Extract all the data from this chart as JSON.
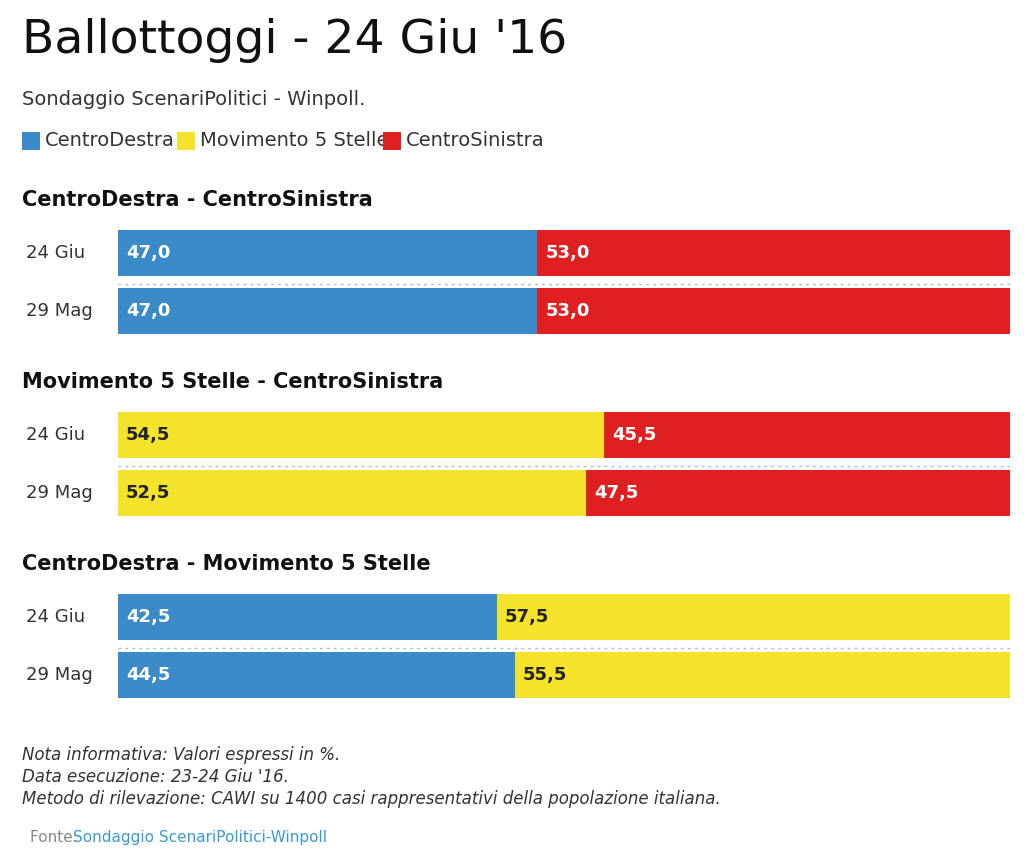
{
  "title": "Ballottoggi - 24 Giu '16",
  "subtitle": "Sondaggio ScenariPolitici - Winpoll.",
  "background_color": "#ffffff",
  "colors": {
    "blue": "#3a8bc8",
    "yellow": "#f5e22a",
    "red": "#e02020"
  },
  "legend_labels": [
    "CentroDestra",
    "Movimento 5 Stelle",
    "CentroSinistra"
  ],
  "sections": [
    {
      "title": "CentroDestra - CentroSinistra",
      "rows": [
        {
          "label": "24 Giu",
          "bar1_color": "blue",
          "bar1_val": 47.0,
          "bar2_color": "red",
          "bar2_val": 53.0
        },
        {
          "label": "29 Mag",
          "bar1_color": "blue",
          "bar1_val": 47.0,
          "bar2_color": "red",
          "bar2_val": 53.0
        }
      ]
    },
    {
      "title": "Movimento 5 Stelle - CentroSinistra",
      "rows": [
        {
          "label": "24 Giu",
          "bar1_color": "yellow",
          "bar1_val": 54.5,
          "bar2_color": "red",
          "bar2_val": 45.5
        },
        {
          "label": "29 Mag",
          "bar1_color": "yellow",
          "bar1_val": 52.5,
          "bar2_color": "red",
          "bar2_val": 47.5
        }
      ]
    },
    {
      "title": "CentroDestra - Movimento 5 Stelle",
      "rows": [
        {
          "label": "24 Giu",
          "bar1_color": "blue",
          "bar1_val": 42.5,
          "bar2_color": "yellow",
          "bar2_val": 57.5
        },
        {
          "label": "29 Mag",
          "bar1_color": "blue",
          "bar1_val": 44.5,
          "bar2_color": "yellow",
          "bar2_val": 55.5
        }
      ]
    }
  ],
  "footnote_lines": [
    "Nota informativa: Valori espressi in %.",
    "Data esecuzione: 23-24 Giu '16.",
    "Metodo di rilevazione: CAWI su 1400 casi rappresentativi della popolazione italiana."
  ],
  "fonte_label": "Fonte: ",
  "fonte_link": "Sondaggio ScenariPolitici-Winpoll",
  "fonte_link_color": "#3a9bd5",
  "title_fontsize": 34,
  "subtitle_fontsize": 14,
  "section_title_fontsize": 15,
  "bar_label_fontsize": 13,
  "row_label_fontsize": 13,
  "footnote_fontsize": 12,
  "fonte_fontsize": 11,
  "legend_fontsize": 14
}
